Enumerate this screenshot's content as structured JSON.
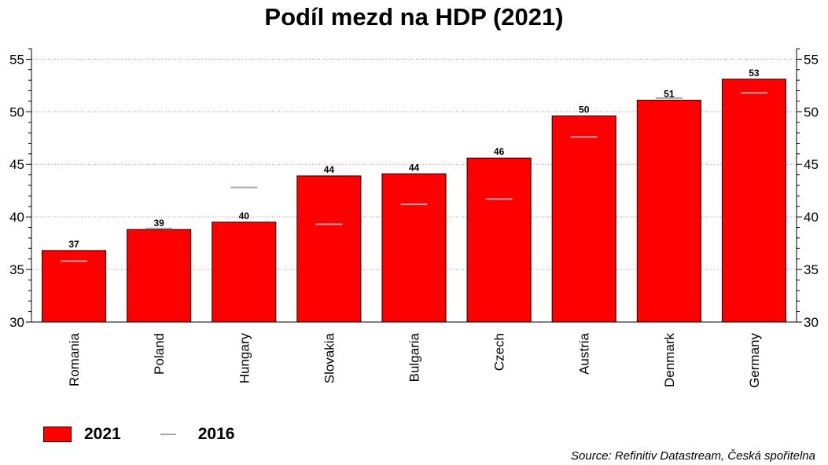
{
  "chart_data": {
    "type": "bar",
    "title": "Podíl mezd na HDP (2021)",
    "categories": [
      "Romania",
      "Poland",
      "Hungary",
      "Slovakia",
      "Bulgaria",
      "Czech",
      "Austria",
      "Denmark",
      "Germany"
    ],
    "series": [
      {
        "name": "2021",
        "type": "bar",
        "color": "#ff0000",
        "values": [
          36.8,
          38.8,
          39.5,
          43.9,
          44.1,
          45.6,
          49.6,
          51.1,
          53.1
        ],
        "labels": [
          "37",
          "39",
          "40",
          "44",
          "44",
          "46",
          "50",
          "51",
          "53"
        ]
      },
      {
        "name": "2016",
        "type": "marker",
        "color": "#a6a6a6",
        "values": [
          35.8,
          38.9,
          42.8,
          39.3,
          41.2,
          41.7,
          47.6,
          51.3,
          51.8
        ]
      }
    ],
    "ylim": [
      30,
      56
    ],
    "yticks": [
      "30",
      "35",
      "40",
      "45",
      "50",
      "55"
    ],
    "grid": true,
    "legend_position": "bottom-left",
    "source": "Source: Refinitiv Datastream, Česká spořitelna"
  }
}
